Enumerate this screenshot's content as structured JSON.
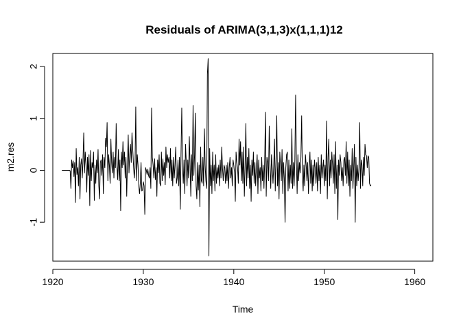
{
  "chart_data": {
    "type": "line",
    "title": "Residuals of ARIMA(3,1,3)x(1,1,1)12",
    "xlabel": "Time",
    "ylabel": "m2.res",
    "xlim": [
      1920,
      1962
    ],
    "ylim": [
      -1.75,
      2.25
    ],
    "xticks": [
      1920,
      1930,
      1940,
      1950,
      1960
    ],
    "yticks": [
      -1,
      0,
      1,
      2
    ],
    "grid": false,
    "series": [
      {
        "color": "#000000",
        "x_start": 1921,
        "x_step": 0.08333,
        "values": [
          0,
          0,
          0,
          0,
          0,
          0,
          0,
          0,
          0,
          0,
          0,
          -0.01,
          -0.35,
          0.2,
          0.05,
          0.18,
          -0.12,
          0.15,
          -0.62,
          0.42,
          -0.08,
          0.05,
          -0.3,
          0.25,
          -0.55,
          0.1,
          0.22,
          -0.15,
          0.18,
          0.72,
          -0.05,
          0.35,
          0.1,
          -0.42,
          0.25,
          -0.1,
          0.3,
          -0.68,
          0.38,
          -0.2,
          0.15,
          0.05,
          0.35,
          -0.58,
          0.1,
          -0.25,
          0.2,
          -0.05,
          0.4,
          -0.3,
          -0.55,
          0.15,
          0.2,
          -0.1,
          0.3,
          -0.45,
          0.25,
          0.05,
          0.62,
          0.45,
          0.92,
          -0.2,
          0.3,
          0.1,
          -0.25,
          0.6,
          0.15,
          -0.05,
          0.35,
          -0.15,
          0.25,
          0.05,
          0.9,
          0.1,
          -0.18,
          0.4,
          -0.2,
          0.2,
          -0.78,
          0.35,
          0.05,
          0.55,
          0.1,
          0.35,
          -0.15,
          0.25,
          -0.5,
          0.15,
          0.68,
          -0.05,
          0.3,
          0.5,
          0.15,
          0.72,
          0.4,
          0.1,
          -0.15,
          0.05,
          1.22,
          -0.2,
          0.3,
          0.1,
          -0.3,
          -0.45,
          -0.25,
          0.15,
          -0.4,
          -0.38,
          -0.22,
          -0.3,
          -0.85,
          0.05,
          0,
          -0.08,
          0.02,
          -0.1,
          -0.15,
          0.05,
          -0.35,
          1.2,
          0.25,
          0.1,
          -0.15,
          0.22,
          -0.18,
          0.05,
          -0.5,
          0.2,
          -0.05,
          0.3,
          -0.25,
          -0.3,
          0.35,
          -0.2,
          0.22,
          -0.1,
          0.15,
          -0.28,
          0.45,
          0.05,
          0.3,
          0.15,
          0.25,
          -0.15,
          0.42,
          -0.2,
          0.2,
          -0.3,
          0.25,
          -0.15,
          0.1,
          0.45,
          -0.25,
          -0.15,
          0.2,
          -0.3,
          0.25,
          -0.75,
          0.3,
          1.2,
          0.05,
          -0.25,
          0.2,
          -0.45,
          0.5,
          0.15,
          -0.3,
          0.2,
          -0.15,
          0.65,
          0.1,
          -0.5,
          0.3,
          -0.2,
          1.25,
          -0.1,
          0.3,
          1.1,
          -0.3,
          -0.55,
          0.15,
          -0.38,
          0.1,
          -0.7,
          0.45,
          -0.2,
          -0.25,
          0.25,
          -0.3,
          0.8,
          0.1,
          -0.2,
          -0.35,
          1.85,
          2.15,
          -1.65,
          0.42,
          -0.3,
          0.1,
          -0.45,
          0.35,
          -0.2,
          0.1,
          -0.4,
          0.3,
          -0.25,
          0.05,
          -0.15,
          0.1,
          -0.3,
          0.2,
          -0.15,
          0.45,
          0.05,
          -0.2,
          0.1,
          0.05,
          -0.25,
          0.1,
          -0.2,
          0.15,
          -0.35,
          0.05,
          0.25,
          -0.15,
          0.05,
          -0.3,
          0.2,
          0.1,
          -0.05,
          -0.6,
          0.35,
          0.15,
          0.05,
          -0.25,
          0.6,
          0.1,
          0.55,
          -0.2,
          0.35,
          -0.25,
          0.45,
          -0.5,
          0.1,
          0.9,
          -0.3,
          0.25,
          -0.15,
          0.42,
          -0.35,
          0.1,
          -0.6,
          0.2,
          -0.1,
          0.35,
          -0.25,
          0.15,
          -0.3,
          0.05,
          0.3,
          -0.45,
          0.2,
          -0.15,
          0.05,
          -0.4,
          0.25,
          -0.2,
          0.1,
          -0.35,
          0.2,
          1.12,
          -0.5,
          0.25,
          0.15,
          -0.2,
          0.85,
          0.1,
          -0.35,
          0.3,
          0.05,
          -0.25,
          0.1,
          0.6,
          -0.4,
          0.2,
          1.05,
          -0.3,
          0.15,
          -0.55,
          0.35,
          0.1,
          -0.2,
          0.4,
          -0.45,
          0.15,
          -0.15,
          -1.0,
          0.05,
          0.3,
          0.35,
          -0.4,
          0.2,
          -0.35,
          0.1,
          -0.25,
          0.8,
          -0.35,
          0.15,
          -0.3,
          0.2,
          1.45,
          0.2,
          -0.45,
          0.3,
          -0.2,
          0.15,
          -0.05,
          0.25,
          1.05,
          -0.1,
          -0.4,
          0.1,
          -0.3,
          0.3,
          0.1,
          -0.2,
          0.15,
          -0.45,
          0.05,
          0.35,
          -0.25,
          0.2,
          -0.4,
          0.1,
          -0.3,
          0.2,
          0.05,
          -0.25,
          0.15,
          -0.4,
          0.25,
          -0.2,
          0.1,
          -0.45,
          0.3,
          -0.15,
          0.05,
          0.2,
          -0.3,
          0.1,
          -0.2,
          0.95,
          -0.55,
          0.25,
          0.6,
          -0.3,
          0.2,
          -0.15,
          0.35,
          0.1,
          -0.25,
          0.3,
          -0.45,
          0.55,
          -0.35,
          0.1,
          -0.95,
          0.2,
          -0.1,
          0.3,
          0.15,
          -0.2,
          0.05,
          -0.3,
          0.2,
          0.25,
          -0.1,
          0.55,
          -0.25,
          0.35,
          -0.3,
          0.2,
          -0.5,
          0.1,
          -0.2,
          0.42,
          -0.35,
          0.05,
          0.5,
          -1.0,
          0.25,
          -0.3,
          0.1,
          -0.2,
          0.05,
          0.92,
          -0.35,
          0.2,
          0.1,
          -0.3,
          0.25,
          -0.1,
          0.5,
          0.3,
          0.28,
          0.05,
          0.28,
          0.25,
          -0.25,
          -0.3,
          -0.28
        ]
      }
    ]
  }
}
